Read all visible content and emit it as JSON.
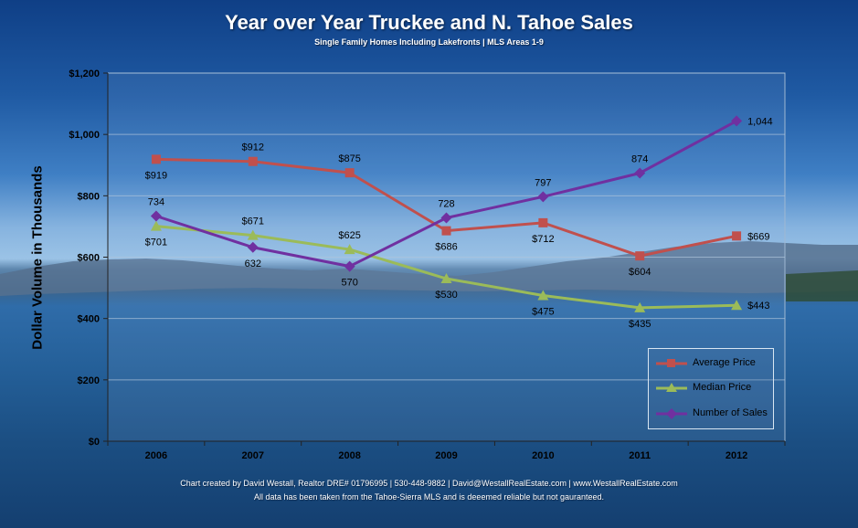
{
  "header": {
    "title": "Year over Year Truckee and N. Tahoe Sales",
    "subtitle": "Single Family Homes Including Lakefronts | MLS Areas 1-9"
  },
  "footer": {
    "line1": "Chart created by David Westall, Realtor DRE# 01796995 | 530-448-9882 | David@WestallRealEstate.com | www.WestallRealEstate.com",
    "line2": "All data has been taken from the Tahoe-Sierra MLS and is deeemed reliable but not gauranteed."
  },
  "colors": {
    "average": "#c0504d",
    "median": "#9bbb59",
    "sales": "#7030a0"
  },
  "chart_data": {
    "type": "line",
    "ylabel": "Dollar Volume in Thousands",
    "xlabel": "",
    "ylim": [
      0,
      1200
    ],
    "yticks": [
      0,
      200,
      400,
      600,
      800,
      1000,
      1200
    ],
    "ytick_labels": [
      "$0",
      "$200",
      "$400",
      "$600",
      "$800",
      "$1,000",
      "$1,200"
    ],
    "categories": [
      "2006",
      "2007",
      "2008",
      "2009",
      "2010",
      "2011",
      "2012"
    ],
    "grid": true,
    "legend_position": "bottom-right",
    "series": [
      {
        "name": "Average Price",
        "marker": "square",
        "values": [
          919,
          912,
          875,
          686,
          712,
          604,
          669
        ],
        "labels": [
          "$919",
          "$912",
          "$875",
          "$686",
          "$712",
          "$604",
          "$669"
        ]
      },
      {
        "name": "Median Price",
        "marker": "triangle",
        "values": [
          701,
          671,
          625,
          530,
          475,
          435,
          443
        ],
        "labels": [
          "$701",
          "$671",
          "$625",
          "$530",
          "$475",
          "$435",
          "$443"
        ]
      },
      {
        "name": "Number of Sales",
        "marker": "diamond",
        "values": [
          734,
          632,
          570,
          728,
          797,
          874,
          1044
        ],
        "labels": [
          "734",
          "632",
          "570",
          "728",
          "797",
          "874",
          "1,044"
        ]
      }
    ]
  }
}
